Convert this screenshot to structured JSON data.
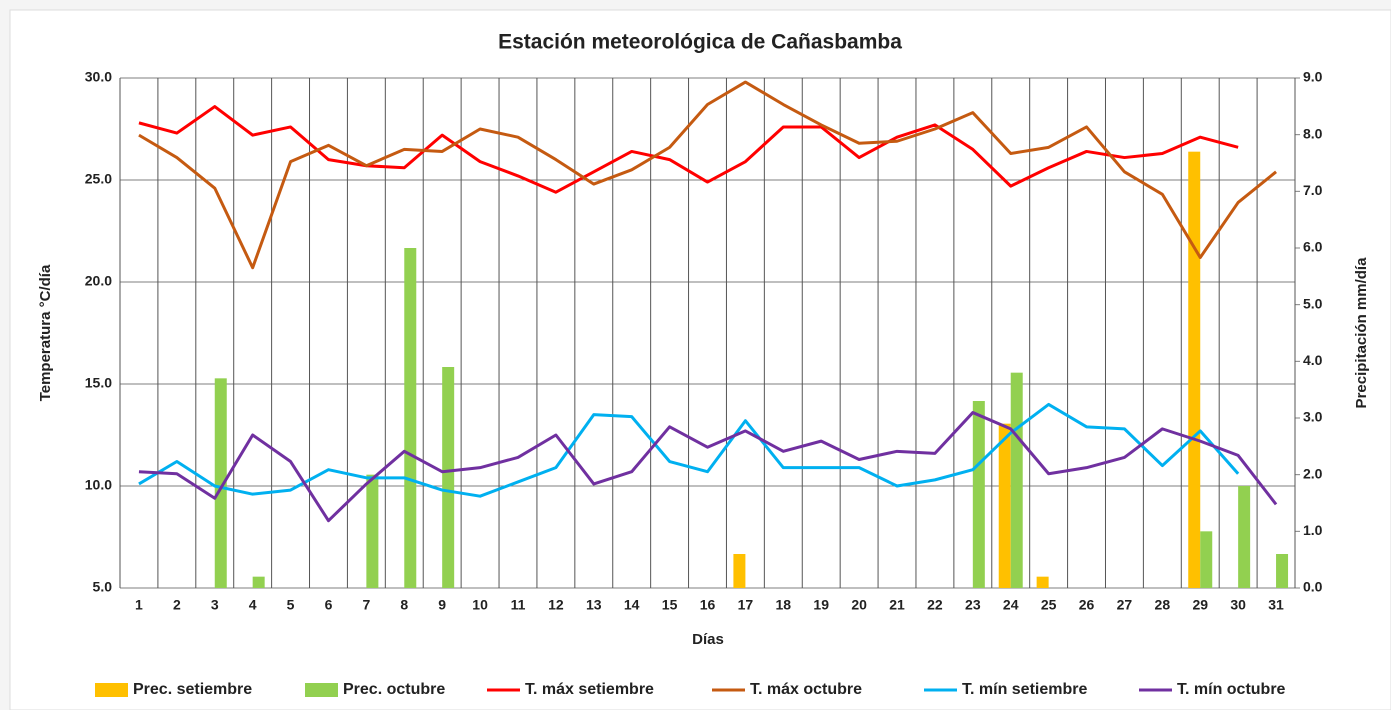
{
  "chart_data": {
    "type": "combo",
    "title": "Estación meteorológica de Cañasbamba",
    "x_label": "Días",
    "y_label": "Temperatura °C/día",
    "y2_label": "Precipitación mm/día",
    "categories": [
      "1",
      "2",
      "3",
      "4",
      "5",
      "6",
      "7",
      "8",
      "9",
      "10",
      "11",
      "12",
      "13",
      "14",
      "15",
      "16",
      "17",
      "18",
      "19",
      "20",
      "21",
      "22",
      "23",
      "24",
      "25",
      "26",
      "27",
      "28",
      "29",
      "30",
      "31"
    ],
    "ylim": [
      5,
      30
    ],
    "yticks": [
      {
        "value": 5,
        "label": "5.0"
      },
      {
        "value": 10,
        "label": "10.0"
      },
      {
        "value": 15,
        "label": "15.0"
      },
      {
        "value": 20,
        "label": "20.0"
      },
      {
        "value": 25,
        "label": "25.0"
      },
      {
        "value": 30,
        "label": "30.0"
      }
    ],
    "y2lim": [
      0,
      9
    ],
    "y2ticks": [
      {
        "value": 0,
        "label": "0.0"
      },
      {
        "value": 1,
        "label": "1.0"
      },
      {
        "value": 2,
        "label": "2.0"
      },
      {
        "value": 3,
        "label": "3.0"
      },
      {
        "value": 4,
        "label": "4.0"
      },
      {
        "value": 5,
        "label": "5.0"
      },
      {
        "value": 6,
        "label": "6.0"
      },
      {
        "value": 7,
        "label": "7.0"
      },
      {
        "value": 8,
        "label": "8.0"
      },
      {
        "value": 9,
        "label": "9.0"
      }
    ],
    "grid": true,
    "legend": "bottom",
    "series": [
      {
        "name": "Prec. setiembre",
        "type": "bar",
        "axis": "y2",
        "color": "#ffc000",
        "values": [
          0,
          0,
          0,
          0,
          0,
          0,
          0,
          0,
          0,
          0,
          0,
          0,
          0,
          0,
          0,
          0,
          0.6,
          0,
          0,
          0,
          0,
          0,
          0,
          2.9,
          0.2,
          0,
          0,
          0,
          7.7,
          0,
          null
        ]
      },
      {
        "name": "Prec. octubre",
        "type": "bar",
        "axis": "y2",
        "color": "#92d050",
        "values": [
          0,
          0,
          3.7,
          0.2,
          0,
          0,
          2.0,
          6.0,
          3.9,
          0,
          0,
          0,
          0,
          0,
          0,
          0,
          0,
          0,
          0,
          0,
          0,
          0,
          3.3,
          3.8,
          0,
          0,
          0,
          0,
          1.0,
          1.8,
          0.6
        ]
      },
      {
        "name": "T. máx setiembre",
        "type": "line",
        "color": "#ff0000",
        "values": [
          27.8,
          27.3,
          28.6,
          27.2,
          27.6,
          26.0,
          25.7,
          25.6,
          27.2,
          25.9,
          25.2,
          24.4,
          25.4,
          26.4,
          26.0,
          24.9,
          25.9,
          27.6,
          27.6,
          26.1,
          27.1,
          27.7,
          26.5,
          24.7,
          25.6,
          26.4,
          26.1,
          26.3,
          27.1,
          26.6,
          null
        ]
      },
      {
        "name": "T. máx octubre",
        "type": "line",
        "color": "#c55a11",
        "values": [
          27.2,
          26.1,
          24.6,
          20.7,
          25.9,
          26.7,
          25.7,
          26.5,
          26.4,
          27.5,
          27.1,
          26.0,
          24.8,
          25.5,
          26.6,
          28.7,
          29.8,
          28.7,
          27.7,
          26.8,
          26.9,
          27.5,
          28.3,
          26.3,
          26.6,
          27.6,
          25.4,
          24.3,
          21.2,
          23.9,
          25.4
        ]
      },
      {
        "name": "T. mín setiembre",
        "type": "line",
        "color": "#00b0f0",
        "values": [
          10.1,
          11.2,
          10.0,
          9.6,
          9.8,
          10.8,
          10.4,
          10.4,
          9.8,
          9.5,
          10.2,
          10.9,
          13.5,
          13.4,
          11.2,
          10.7,
          13.2,
          10.9,
          10.9,
          10.9,
          10.0,
          10.3,
          10.8,
          12.6,
          14.0,
          12.9,
          12.8,
          11.0,
          12.7,
          10.6,
          null
        ]
      },
      {
        "name": "T. mín octubre",
        "type": "line",
        "color": "#7030a0",
        "values": [
          10.7,
          10.6,
          9.4,
          12.5,
          11.2,
          8.3,
          10.1,
          11.7,
          10.7,
          10.9,
          11.4,
          12.5,
          10.1,
          10.7,
          12.9,
          11.9,
          12.7,
          11.7,
          12.2,
          11.3,
          11.7,
          11.6,
          13.6,
          12.8,
          10.6,
          10.9,
          11.4,
          12.8,
          12.2,
          11.5,
          9.1
        ]
      }
    ]
  }
}
